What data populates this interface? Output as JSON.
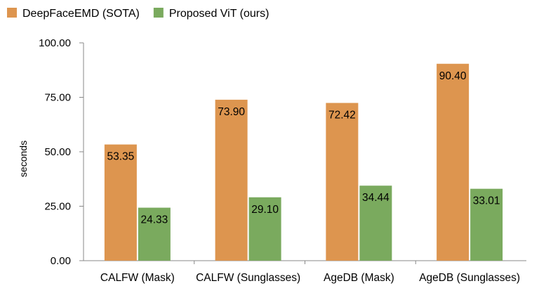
{
  "chart_data": {
    "type": "bar",
    "title": "",
    "xlabel": "",
    "ylabel": "seconds",
    "ylim": [
      0,
      100
    ],
    "yticks": [
      "0.00",
      "25.00",
      "50.00",
      "75.00",
      "100.00"
    ],
    "grid": false,
    "legend_position": "top-left",
    "categories": [
      "CALFW (Mask)",
      "CALFW (Sunglasses)",
      "AgeDB (Mask)",
      "AgeDB (Sunglasses)"
    ],
    "series": [
      {
        "name": "DeepFaceEMD (SOTA)",
        "color": "#DD954F",
        "values": [
          53.35,
          73.9,
          72.42,
          90.4
        ],
        "labels": [
          "53.35",
          "73.90",
          "72.42",
          "90.40"
        ]
      },
      {
        "name": "Proposed ViT (ours)",
        "color": "#7AAA5E",
        "values": [
          24.33,
          29.1,
          34.44,
          33.01
        ],
        "labels": [
          "24.33",
          "29.10",
          "34.44",
          "33.01"
        ]
      }
    ]
  }
}
